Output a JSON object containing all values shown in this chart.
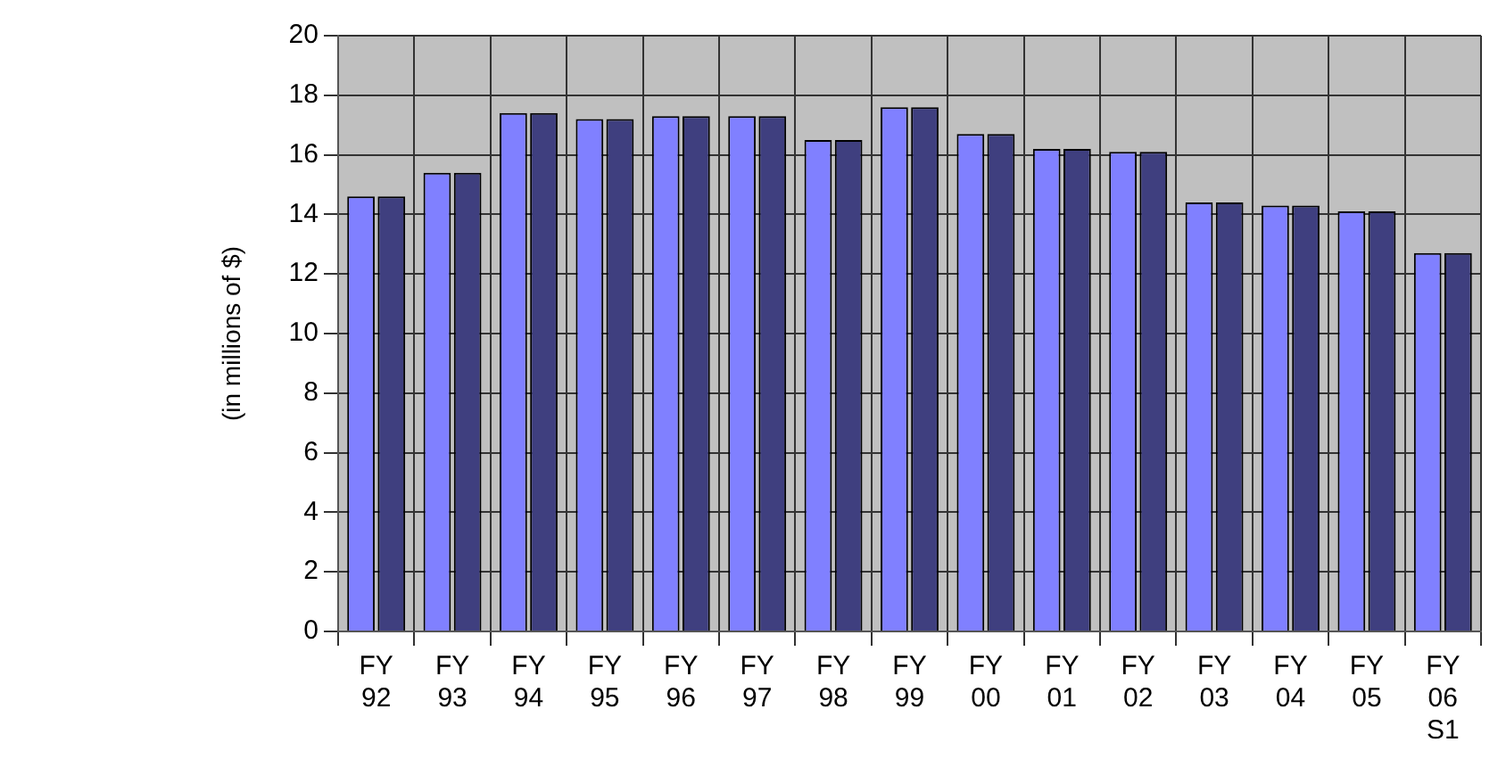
{
  "chart_data": {
    "type": "bar",
    "ylabel": "(in millions of $)",
    "categories": [
      "FY 92",
      "FY 93",
      "FY 94",
      "FY 95",
      "FY 96",
      "FY 97",
      "FY 98",
      "FY 99",
      "FY 00",
      "FY 01",
      "FY 02",
      "FY 03",
      "FY 04",
      "FY 05",
      "FY 06 S1"
    ],
    "series": [
      {
        "color": "#8080ff",
        "values": [
          14.6,
          15.4,
          17.4,
          17.2,
          17.3,
          17.3,
          16.5,
          17.6,
          16.7,
          16.2,
          16.1,
          14.4,
          14.3,
          14.1,
          12.7
        ]
      },
      {
        "color": "#3f3f7f",
        "values": [
          14.6,
          15.4,
          17.4,
          17.2,
          17.3,
          17.3,
          16.5,
          17.6,
          16.7,
          16.2,
          16.1,
          14.4,
          14.3,
          14.1,
          12.7
        ]
      }
    ],
    "ylim": [
      0,
      20
    ],
    "yticks": [
      0,
      2,
      4,
      6,
      8,
      10,
      12,
      14,
      16,
      18,
      20
    ],
    "grid": true,
    "legend": false
  }
}
